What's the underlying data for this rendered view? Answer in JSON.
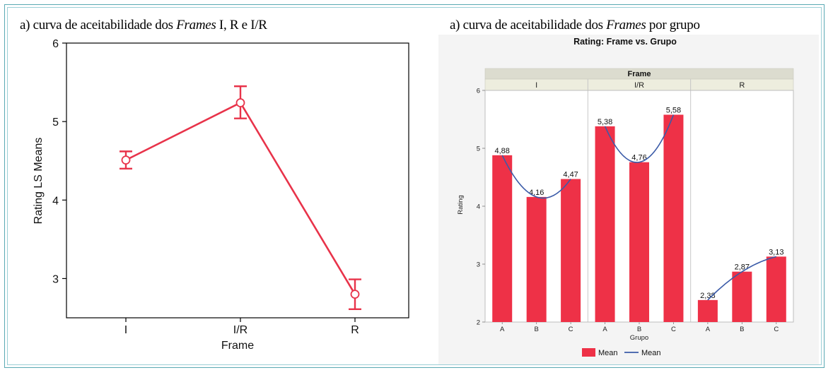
{
  "left_panel": {
    "title_pre": "a) curva de aceitabilidade dos ",
    "title_em": "Frames",
    "title_post": " I, R e I/R"
  },
  "right_panel": {
    "title_pre": "a) curva de aceitabilidade dos ",
    "title_em": "Frames",
    "title_post": " por grupo"
  },
  "chart_data": [
    {
      "type": "line",
      "title": "",
      "xlabel": "Frame",
      "ylabel": "Rating LS Means",
      "categories": [
        "I",
        "I/R",
        "R"
      ],
      "series": [
        {
          "values": [
            4.51,
            5.24,
            2.8
          ],
          "error_low": [
            4.4,
            5.04,
            2.61
          ],
          "error_high": [
            4.62,
            5.45,
            2.99
          ]
        }
      ],
      "ylim": [
        2.5,
        6.0
      ],
      "yticks": [
        3,
        4,
        5,
        6
      ],
      "ytick_labels": [
        "3",
        "4",
        "5",
        "6"
      ],
      "color": "#e8334a"
    },
    {
      "type": "bar",
      "title": "Rating: Frame vs. Grupo",
      "facet_header": "Frame",
      "xlabel": "Grupo",
      "ylabel": "Rating",
      "ylim": [
        2,
        6
      ],
      "yticks": [
        2,
        3,
        4,
        5,
        6
      ],
      "ytick_labels": [
        "2",
        "3",
        "4",
        "5",
        "6"
      ],
      "groups": [
        {
          "name": "I",
          "categories": [
            "A",
            "B",
            "C"
          ],
          "values": [
            4.88,
            4.16,
            4.47
          ],
          "labels": [
            "4,88",
            "4,16",
            "4,47"
          ]
        },
        {
          "name": "I/R",
          "categories": [
            "A",
            "B",
            "C"
          ],
          "values": [
            5.38,
            4.76,
            5.58
          ],
          "labels": [
            "5,38",
            "4,76",
            "5,58"
          ]
        },
        {
          "name": "R",
          "categories": [
            "A",
            "B",
            "C"
          ],
          "values": [
            2.38,
            2.87,
            3.13
          ],
          "labels": [
            "2,38",
            "2,87",
            "3,13"
          ]
        }
      ],
      "legend": [
        {
          "name": "Mean",
          "kind": "bar",
          "color": "#ee3147"
        },
        {
          "name": "Mean",
          "kind": "line",
          "color": "#3b5ba8"
        }
      ],
      "legend_position": "bottom-center"
    }
  ]
}
